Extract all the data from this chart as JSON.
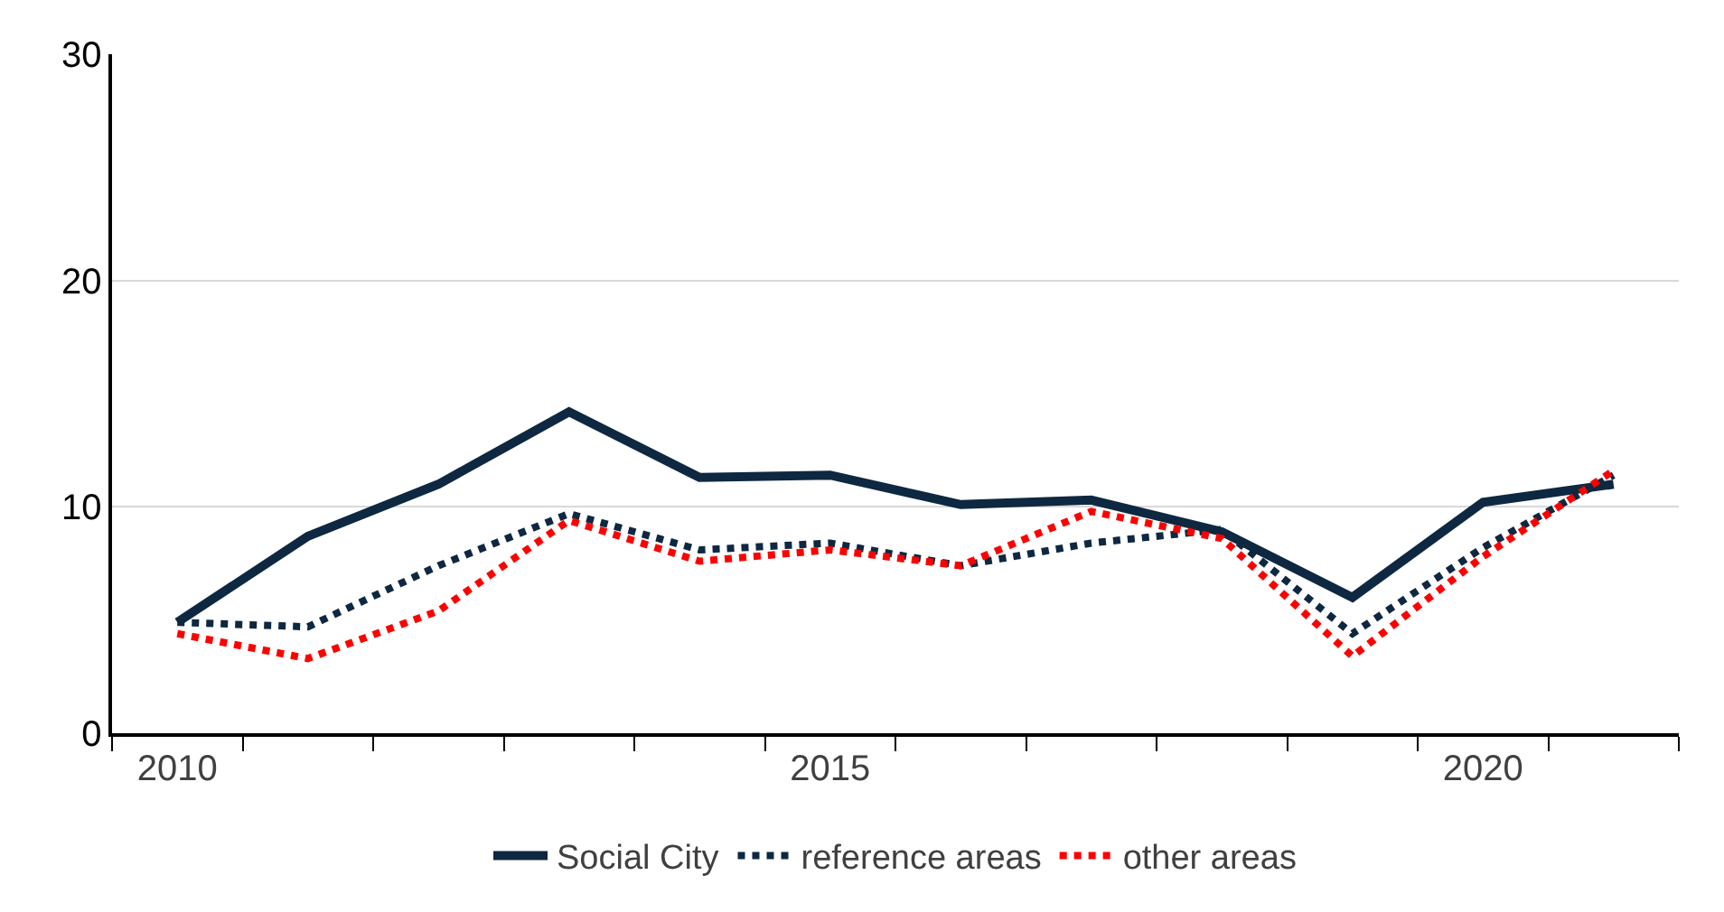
{
  "chart_data": {
    "type": "line",
    "categories": [
      "2010",
      null,
      null,
      null,
      null,
      "2015",
      null,
      null,
      null,
      null,
      "2020",
      null
    ],
    "series": [
      {
        "name": "Social City",
        "color": "#0e2841",
        "line_style": "solid",
        "values": [
          4.9,
          8.7,
          11.0,
          14.2,
          11.3,
          11.4,
          10.1,
          10.3,
          8.9,
          6.0,
          10.2,
          11.0
        ]
      },
      {
        "name": "reference areas",
        "color": "#0e2841",
        "line_style": "dotted",
        "values": [
          4.9,
          4.7,
          7.4,
          9.7,
          8.1,
          8.4,
          7.4,
          8.4,
          9.0,
          4.4,
          8.2,
          11.4
        ]
      },
      {
        "name": "other areas",
        "color": "#ff0000",
        "line_style": "dotted",
        "values": [
          4.4,
          3.3,
          5.4,
          9.4,
          7.6,
          8.1,
          7.4,
          9.8,
          8.6,
          3.4,
          7.8,
          11.6
        ]
      }
    ],
    "ylim": [
      0,
      30
    ],
    "yticks": [
      0,
      10,
      20,
      30
    ],
    "grid": "y",
    "legend": "bottom",
    "marker": "none"
  }
}
